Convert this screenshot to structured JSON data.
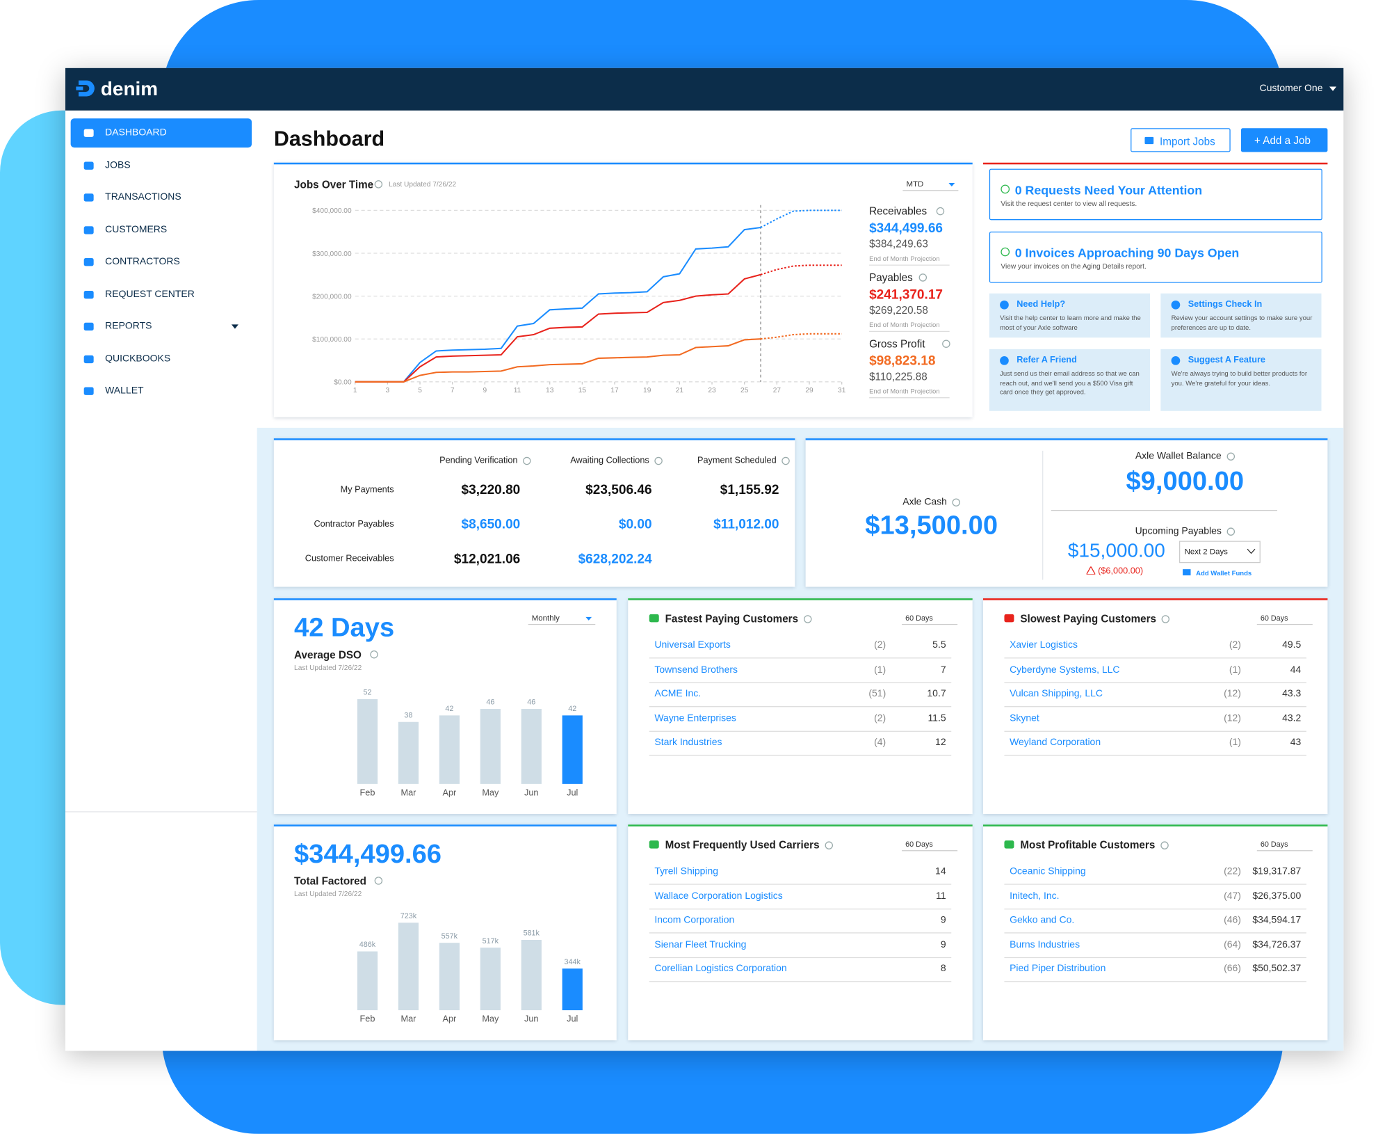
{
  "header": {
    "brand": "denim",
    "user": "Customer One"
  },
  "nav": [
    "DASHBOARD",
    "JOBS",
    "TRANSACTIONS",
    "CUSTOMERS",
    "CONTRACTORS",
    "REQUEST CENTER",
    "REPORTS",
    "QUICKBOOKS",
    "WALLET"
  ],
  "page_title": "Dashboard",
  "actions": [
    "Import Jobs",
    "+ Add a Job"
  ],
  "chart_data": [
    {
      "type": "line",
      "title": "Jobs Over Time",
      "subtitle": "Last Updated 7/26/22",
      "period": "MTD",
      "x": [
        1,
        2,
        3,
        4,
        5,
        6,
        7,
        8,
        9,
        10,
        11,
        12,
        13,
        14,
        15,
        16,
        17,
        18,
        19,
        20,
        21,
        22,
        23,
        24,
        25,
        26,
        27,
        28,
        29,
        30,
        31
      ],
      "xlim": [
        1,
        31
      ],
      "xticks": [
        1,
        3,
        5,
        7,
        9,
        11,
        13,
        15,
        17,
        19,
        21,
        23,
        25,
        27,
        29,
        31
      ],
      "ylim": [
        0,
        400000
      ],
      "yticks": [
        {
          "value": 0,
          "label": "$0.00"
        },
        {
          "value": 100000,
          "label": "$100,000.00"
        },
        {
          "value": 200000,
          "label": "$200,000.00"
        },
        {
          "value": 300000,
          "label": "$300,000.00"
        },
        {
          "value": 400000,
          "label": "$400,000.00"
        }
      ],
      "grid": true,
      "projection_label": "End of Month Projection",
      "series": [
        {
          "name": "Receivables",
          "color": "#1a8cff",
          "current": "$344,499.66",
          "projected": "$384,249.63",
          "values": [
            0,
            0,
            0,
            0,
            45000,
            72000,
            74000,
            75000,
            76000,
            78000,
            130000,
            136000,
            168000,
            170000,
            172000,
            205000,
            207000,
            208000,
            210000,
            245000,
            252000,
            310000,
            312000,
            315000,
            355000,
            360000,
            null,
            null,
            null,
            null,
            null
          ],
          "projected_values": [
            null,
            null,
            null,
            null,
            null,
            null,
            null,
            null,
            null,
            null,
            null,
            null,
            null,
            null,
            null,
            null,
            null,
            null,
            null,
            null,
            null,
            null,
            null,
            null,
            null,
            360000,
            380000,
            398000,
            400000,
            400000,
            400000
          ]
        },
        {
          "name": "Payables",
          "color": "#e8231c",
          "current": "$241,370.17",
          "projected": "$269,220.58",
          "values": [
            0,
            0,
            0,
            0,
            35000,
            58000,
            60000,
            61000,
            62000,
            63000,
            105000,
            110000,
            125000,
            127000,
            128000,
            158000,
            160000,
            161000,
            162000,
            185000,
            190000,
            200000,
            203000,
            205000,
            240000,
            250000,
            null,
            null,
            null,
            null,
            null
          ],
          "projected_values": [
            null,
            null,
            null,
            null,
            null,
            null,
            null,
            null,
            null,
            null,
            null,
            null,
            null,
            null,
            null,
            null,
            null,
            null,
            null,
            null,
            null,
            null,
            null,
            null,
            null,
            250000,
            262000,
            270000,
            272000,
            272000,
            272000
          ]
        },
        {
          "name": "Gross Profit",
          "color": "#f26a21",
          "current": "$98,823.18",
          "projected": "$110,225.88",
          "values": [
            0,
            0,
            0,
            0,
            15000,
            22000,
            23000,
            23000,
            24000,
            25000,
            35000,
            37000,
            40000,
            41000,
            42000,
            55000,
            56000,
            57000,
            58000,
            62000,
            63000,
            80000,
            82000,
            84000,
            98000,
            100000,
            null,
            null,
            null,
            null,
            null
          ],
          "projected_values": [
            null,
            null,
            null,
            null,
            null,
            null,
            null,
            null,
            null,
            null,
            null,
            null,
            null,
            null,
            null,
            null,
            null,
            null,
            null,
            null,
            null,
            null,
            null,
            null,
            null,
            100000,
            104000,
            110000,
            112000,
            112000,
            112000
          ]
        }
      ]
    },
    {
      "type": "bar",
      "title": "42 Days",
      "label": "Average DSO",
      "subtitle": "Last Updated 7/26/22",
      "period": "Monthly",
      "categories": [
        "Feb",
        "Mar",
        "Apr",
        "May",
        "Jun",
        "Jul"
      ],
      "values": [
        52,
        38,
        42,
        46,
        46,
        42
      ],
      "colors": [
        "#cfdde6",
        "#cfdde6",
        "#cfdde6",
        "#cfdde6",
        "#cfdde6",
        "#1a8cff"
      ]
    },
    {
      "type": "bar",
      "title": "$344,499.66",
      "label": "Total Factored",
      "subtitle": "Last Updated 7/26/22",
      "categories": [
        "Feb",
        "Mar",
        "Apr",
        "May",
        "Jun",
        "Jul"
      ],
      "values": [
        486000,
        723000,
        557000,
        517000,
        581000,
        344000
      ],
      "value_labels": [
        "486k",
        "723k",
        "557k",
        "517k",
        "581k",
        "344k"
      ],
      "colors": [
        "#cfdde6",
        "#cfdde6",
        "#cfdde6",
        "#cfdde6",
        "#cfdde6",
        "#1a8cff"
      ]
    }
  ],
  "attention": [
    {
      "title": "0 Requests Need Your Attention",
      "text": "Visit the request center to view all requests."
    },
    {
      "title": "0 Invoices Approaching 90 Days Open",
      "text": "View your invoices on the Aging Details report."
    }
  ],
  "help_cards": [
    {
      "title": "Need Help?",
      "text": "Visit the help center to learn more and make the most of your Axle software"
    },
    {
      "title": "Settings Check In",
      "text": "Review your account settings to make sure your preferences are up to date."
    },
    {
      "title": "Refer A Friend",
      "text": "Just send us their email address so that we can reach out, and we'll send you a $500 Visa gift card once they get approved."
    },
    {
      "title": "Suggest A Feature",
      "text": "We're always trying to build better products for you. We're grateful for your ideas."
    }
  ],
  "payments": {
    "columns": [
      "Pending Verification",
      "Awaiting Collections",
      "Payment Scheduled"
    ],
    "rows": [
      {
        "label": "My Payments",
        "values": [
          "$3,220.80",
          "$23,506.46",
          "$1,155.92"
        ]
      },
      {
        "label": "Contractor Payables",
        "values": [
          "$8,650.00",
          "$0.00",
          "$11,012.00"
        ]
      },
      {
        "label": "Customer Receivables",
        "values": [
          "$12,021.06",
          "$628,202.24"
        ]
      }
    ]
  },
  "wallet": {
    "cash_label": "Axle Cash",
    "cash": "$13,500.00",
    "balance_label": "Axle Wallet Balance",
    "balance": "$9,000.00",
    "upcoming_label": "Upcoming Payables",
    "upcoming": "$15,000.00",
    "range": "Next 2 Days",
    "shortfall": "($6,000.00)",
    "add_funds": "Add Wallet Funds"
  },
  "lists": [
    {
      "title": "Fastest Paying Customers",
      "period": "60 Days",
      "rows": [
        [
          "Universal Exports",
          "(2)",
          "5.5"
        ],
        [
          "Townsend Brothers",
          "(1)",
          "7"
        ],
        [
          "ACME Inc.",
          "(51)",
          "10.7"
        ],
        [
          "Wayne Enterprises",
          "(2)",
          "11.5"
        ],
        [
          "Stark Industries",
          "(4)",
          "12"
        ]
      ]
    },
    {
      "title": "Slowest Paying Customers",
      "period": "60 Days",
      "rows": [
        [
          "Xavier Logistics",
          "(2)",
          "49.5"
        ],
        [
          "Cyberdyne Systems, LLC",
          "(1)",
          "44"
        ],
        [
          "Vulcan Shipping, LLC",
          "(12)",
          "43.3"
        ],
        [
          "Skynet",
          "(12)",
          "43.2"
        ],
        [
          "Weyland Corporation",
          "(1)",
          "43"
        ]
      ]
    },
    {
      "title": "Most Frequently Used Carriers",
      "period": "60 Days",
      "rows": [
        [
          "Tyrell Shipping",
          "14"
        ],
        [
          "Wallace Corporation Logistics",
          "11"
        ],
        [
          "Incom Corporation",
          "9"
        ],
        [
          "Sienar Fleet Trucking",
          "9"
        ],
        [
          "Corellian Logistics Corporation",
          "8"
        ]
      ]
    },
    {
      "title": "Most Profitable Customers",
      "period": "60 Days",
      "rows": [
        [
          "Oceanic Shipping",
          "(22)",
          "$19,317.87"
        ],
        [
          "Initech, Inc.",
          "(47)",
          "$26,375.00"
        ],
        [
          "Gekko and Co.",
          "(46)",
          "$34,594.17"
        ],
        [
          "Burns Industries",
          "(64)",
          "$34,726.37"
        ],
        [
          "Pied Piper Distribution",
          "(66)",
          "$50,502.37"
        ]
      ]
    }
  ]
}
